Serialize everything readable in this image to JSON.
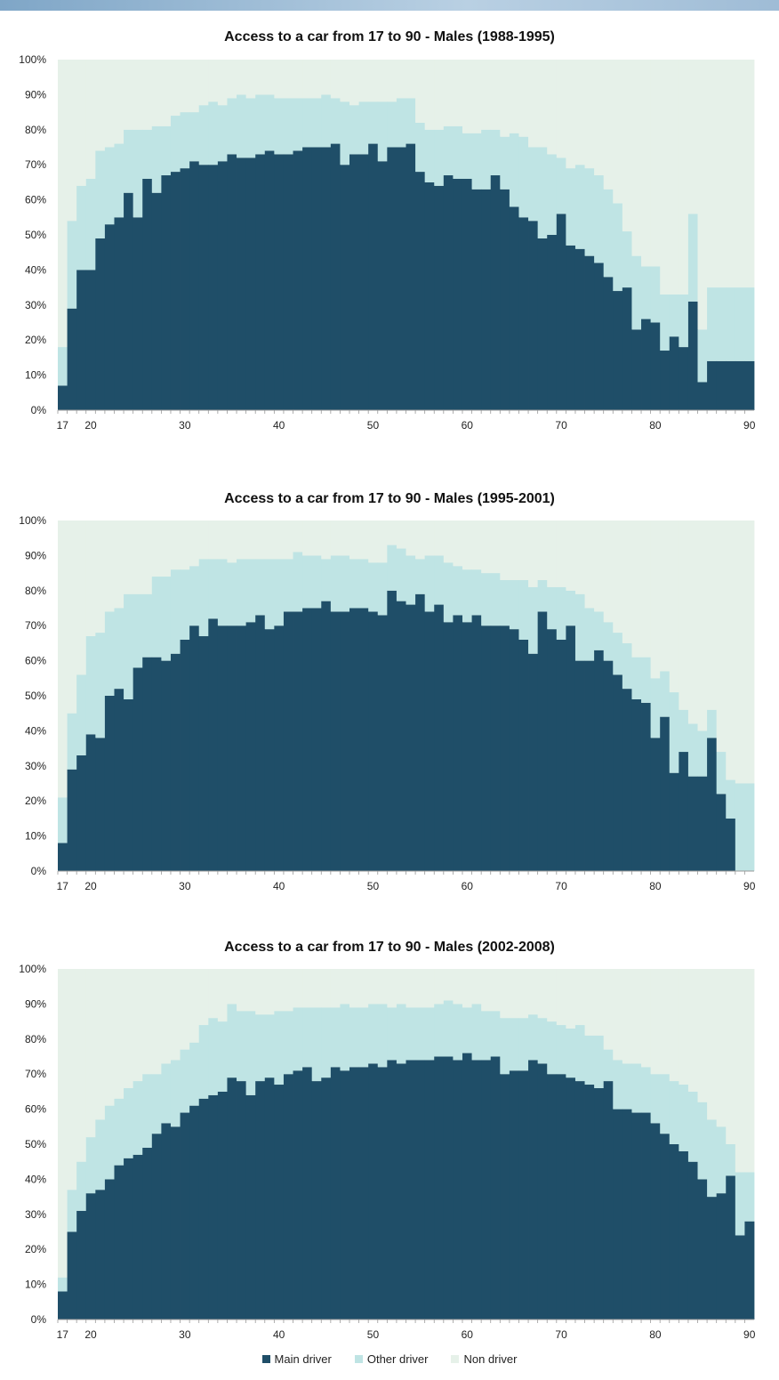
{
  "colors": {
    "main": "#1f4e68",
    "other": "#bfe4e4",
    "non": "#e6f1e9"
  },
  "legend": [
    {
      "label": "Main driver",
      "color": "#1f4e68"
    },
    {
      "label": "Other driver",
      "color": "#bfe4e4"
    },
    {
      "label": "Non driver",
      "color": "#e6f1e9"
    }
  ],
  "chart_data": [
    {
      "type": "bar",
      "stacked": true,
      "title": "Access to a car from 17 to 90 - Males (1988-1995)",
      "x": [
        17,
        18,
        19,
        20,
        21,
        22,
        23,
        24,
        25,
        26,
        27,
        28,
        29,
        30,
        31,
        32,
        33,
        34,
        35,
        36,
        37,
        38,
        39,
        40,
        41,
        42,
        43,
        44,
        45,
        46,
        47,
        48,
        49,
        50,
        51,
        52,
        53,
        54,
        55,
        56,
        57,
        58,
        59,
        60,
        61,
        62,
        63,
        64,
        65,
        66,
        67,
        68,
        69,
        70,
        71,
        72,
        73,
        74,
        75,
        76,
        77,
        78,
        79,
        80,
        81,
        82,
        83,
        84,
        85,
        86,
        87,
        88,
        89,
        90
      ],
      "x_tick_labels": [
        "17",
        "20",
        "30",
        "40",
        "50",
        "60",
        "70",
        "80",
        "90"
      ],
      "y_ticks": [
        "0%",
        "10%",
        "20%",
        "30%",
        "40%",
        "50%",
        "60%",
        "70%",
        "80%",
        "90%",
        "100%"
      ],
      "ylim": [
        0,
        100
      ],
      "series": [
        {
          "name": "Main driver",
          "values": [
            7,
            29,
            40,
            40,
            49,
            53,
            55,
            62,
            55,
            66,
            62,
            67,
            68,
            69,
            71,
            70,
            70,
            71,
            73,
            72,
            72,
            73,
            74,
            73,
            73,
            74,
            75,
            75,
            75,
            76,
            70,
            73,
            73,
            76,
            71,
            75,
            75,
            76,
            68,
            65,
            64,
            67,
            66,
            66,
            63,
            63,
            67,
            63,
            58,
            55,
            54,
            49,
            50,
            56,
            47,
            46,
            44,
            42,
            38,
            34,
            35,
            23,
            26,
            25,
            17,
            21,
            18,
            31,
            8,
            14,
            14,
            14,
            14,
            14
          ]
        },
        {
          "name": "Other driver",
          "values": [
            11,
            25,
            24,
            26,
            25,
            22,
            21,
            18,
            25,
            14,
            19,
            14,
            16,
            16,
            14,
            17,
            18,
            16,
            16,
            18,
            17,
            17,
            16,
            16,
            16,
            15,
            14,
            14,
            15,
            13,
            18,
            14,
            15,
            12,
            17,
            13,
            14,
            13,
            14,
            15,
            16,
            14,
            15,
            13,
            16,
            17,
            13,
            15,
            21,
            23,
            21,
            26,
            23,
            16,
            22,
            24,
            25,
            25,
            25,
            25,
            16,
            21,
            15,
            16,
            16,
            12,
            15,
            25,
            15,
            21,
            21,
            21,
            21,
            21
          ]
        },
        {
          "name": "Non driver",
          "values": [
            82,
            46,
            36,
            34,
            26,
            25,
            24,
            20,
            20,
            20,
            19,
            19,
            16,
            15,
            15,
            13,
            12,
            13,
            11,
            10,
            11,
            10,
            10,
            11,
            11,
            11,
            11,
            11,
            10,
            11,
            12,
            13,
            12,
            12,
            12,
            12,
            11,
            11,
            18,
            20,
            20,
            19,
            19,
            21,
            21,
            20,
            20,
            22,
            21,
            22,
            25,
            25,
            27,
            28,
            31,
            30,
            31,
            33,
            37,
            41,
            49,
            56,
            59,
            59,
            67,
            67,
            67,
            44,
            77,
            65,
            65,
            65,
            65,
            65
          ]
        }
      ]
    },
    {
      "type": "bar",
      "stacked": true,
      "title": "Access to a car from 17 to 90 - Males (1995-2001)",
      "x": [
        17,
        18,
        19,
        20,
        21,
        22,
        23,
        24,
        25,
        26,
        27,
        28,
        29,
        30,
        31,
        32,
        33,
        34,
        35,
        36,
        37,
        38,
        39,
        40,
        41,
        42,
        43,
        44,
        45,
        46,
        47,
        48,
        49,
        50,
        51,
        52,
        53,
        54,
        55,
        56,
        57,
        58,
        59,
        60,
        61,
        62,
        63,
        64,
        65,
        66,
        67,
        68,
        69,
        70,
        71,
        72,
        73,
        74,
        75,
        76,
        77,
        78,
        79,
        80,
        81,
        82,
        83,
        84,
        85,
        86,
        87,
        88,
        89,
        90
      ],
      "x_tick_labels": [
        "17",
        "20",
        "30",
        "40",
        "50",
        "60",
        "70",
        "80",
        "90"
      ],
      "y_ticks": [
        "0%",
        "10%",
        "20%",
        "30%",
        "40%",
        "50%",
        "60%",
        "70%",
        "80%",
        "90%",
        "100%"
      ],
      "ylim": [
        0,
        100
      ],
      "series": [
        {
          "name": "Main driver",
          "values": [
            8,
            29,
            33,
            39,
            38,
            50,
            52,
            49,
            58,
            61,
            61,
            60,
            62,
            66,
            70,
            67,
            72,
            70,
            70,
            70,
            71,
            73,
            69,
            70,
            74,
            74,
            75,
            75,
            77,
            74,
            74,
            75,
            75,
            74,
            73,
            80,
            77,
            76,
            79,
            74,
            76,
            71,
            73,
            71,
            73,
            70,
            70,
            70,
            69,
            66,
            62,
            74,
            69,
            66,
            70,
            60,
            60,
            63,
            60,
            56,
            52,
            49,
            48,
            38,
            44,
            28,
            34,
            27,
            27,
            38,
            22,
            15,
            0,
            0
          ]
        },
        {
          "name": "Other driver",
          "values": [
            13,
            16,
            23,
            28,
            30,
            24,
            23,
            30,
            21,
            18,
            23,
            24,
            24,
            20,
            17,
            22,
            17,
            19,
            18,
            19,
            18,
            16,
            20,
            19,
            15,
            17,
            15,
            15,
            12,
            16,
            16,
            14,
            14,
            14,
            15,
            13,
            15,
            14,
            10,
            16,
            14,
            17,
            14,
            15,
            13,
            15,
            15,
            13,
            14,
            17,
            19,
            9,
            12,
            15,
            10,
            19,
            15,
            11,
            11,
            12,
            13,
            12,
            13,
            17,
            13,
            23,
            12,
            15,
            13,
            8,
            12,
            11,
            25,
            25
          ]
        },
        {
          "name": "Non driver",
          "values": [
            79,
            55,
            44,
            33,
            32,
            26,
            25,
            21,
            21,
            21,
            16,
            16,
            14,
            14,
            13,
            11,
            11,
            11,
            12,
            11,
            11,
            11,
            11,
            11,
            11,
            9,
            10,
            10,
            11,
            10,
            10,
            11,
            11,
            12,
            12,
            7,
            8,
            10,
            11,
            10,
            10,
            12,
            13,
            14,
            14,
            15,
            15,
            17,
            17,
            17,
            19,
            17,
            19,
            19,
            20,
            21,
            25,
            26,
            29,
            32,
            35,
            39,
            39,
            45,
            43,
            49,
            54,
            58,
            60,
            54,
            66,
            74,
            75,
            75
          ]
        }
      ]
    },
    {
      "type": "bar",
      "stacked": true,
      "title": "Access to a car from 17 to 90 - Males (2002-2008)",
      "x": [
        17,
        18,
        19,
        20,
        21,
        22,
        23,
        24,
        25,
        26,
        27,
        28,
        29,
        30,
        31,
        32,
        33,
        34,
        35,
        36,
        37,
        38,
        39,
        40,
        41,
        42,
        43,
        44,
        45,
        46,
        47,
        48,
        49,
        50,
        51,
        52,
        53,
        54,
        55,
        56,
        57,
        58,
        59,
        60,
        61,
        62,
        63,
        64,
        65,
        66,
        67,
        68,
        69,
        70,
        71,
        72,
        73,
        74,
        75,
        76,
        77,
        78,
        79,
        80,
        81,
        82,
        83,
        84,
        85,
        86,
        87,
        88,
        89,
        90
      ],
      "x_tick_labels": [
        "17",
        "20",
        "30",
        "40",
        "50",
        "60",
        "70",
        "80",
        "90"
      ],
      "y_ticks": [
        "0%",
        "10%",
        "20%",
        "30%",
        "40%",
        "50%",
        "60%",
        "70%",
        "80%",
        "90%",
        "100%"
      ],
      "ylim": [
        0,
        100
      ],
      "series": [
        {
          "name": "Main driver",
          "values": [
            8,
            25,
            31,
            36,
            37,
            40,
            44,
            46,
            47,
            49,
            53,
            56,
            55,
            59,
            61,
            63,
            64,
            65,
            69,
            68,
            64,
            68,
            69,
            67,
            70,
            71,
            72,
            68,
            69,
            72,
            71,
            72,
            72,
            73,
            72,
            74,
            73,
            74,
            74,
            74,
            75,
            75,
            74,
            76,
            74,
            74,
            75,
            70,
            71,
            71,
            74,
            73,
            70,
            70,
            69,
            68,
            67,
            66,
            68,
            60,
            60,
            59,
            59,
            56,
            53,
            50,
            48,
            45,
            40,
            35,
            36,
            41,
            24,
            28
          ]
        },
        {
          "name": "Other driver",
          "values": [
            4,
            12,
            14,
            16,
            20,
            21,
            19,
            20,
            21,
            21,
            17,
            17,
            19,
            18,
            18,
            21,
            22,
            20,
            21,
            20,
            24,
            19,
            18,
            21,
            18,
            18,
            17,
            21,
            20,
            17,
            19,
            17,
            17,
            17,
            18,
            15,
            17,
            15,
            15,
            15,
            15,
            16,
            16,
            13,
            16,
            14,
            13,
            16,
            15,
            15,
            13,
            13,
            15,
            14,
            14,
            16,
            14,
            15,
            9,
            14,
            13,
            14,
            13,
            14,
            17,
            18,
            19,
            20,
            22,
            22,
            19,
            9,
            18,
            14
          ]
        },
        {
          "name": "Non driver",
          "values": [
            88,
            63,
            55,
            48,
            43,
            39,
            37,
            34,
            32,
            30,
            30,
            27,
            26,
            23,
            21,
            16,
            14,
            15,
            10,
            12,
            12,
            13,
            13,
            12,
            12,
            11,
            11,
            11,
            11,
            11,
            10,
            11,
            11,
            10,
            10,
            11,
            10,
            11,
            11,
            11,
            10,
            9,
            10,
            11,
            10,
            12,
            12,
            14,
            14,
            14,
            13,
            14,
            15,
            16,
            17,
            16,
            19,
            19,
            23,
            26,
            27,
            27,
            28,
            30,
            30,
            32,
            33,
            35,
            38,
            43,
            45,
            50,
            58,
            58
          ]
        }
      ]
    }
  ]
}
